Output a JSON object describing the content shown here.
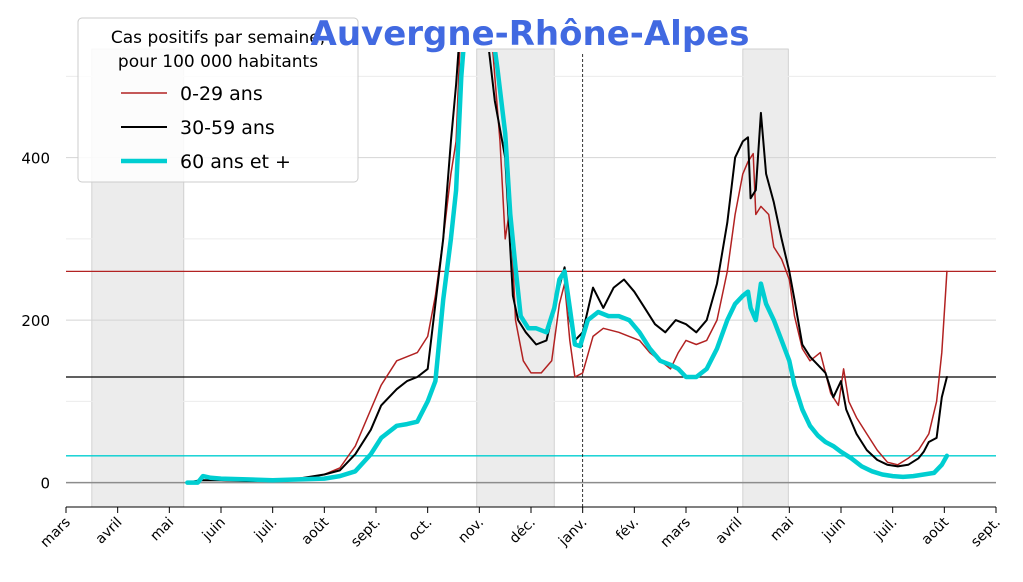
{
  "chart_data": {
    "type": "line",
    "title": "Auvergne-Rhône-Alpes",
    "title_color": "#4169e1",
    "legend": {
      "title_line1": "Cas positifs par semaine,",
      "title_line2": "pour 100 000 habitants",
      "placement": "top-left"
    },
    "xticks": [
      "mars",
      "avril",
      "mai",
      "juin",
      "juil.",
      "août",
      "sept.",
      "oct.",
      "nov.",
      "déc.",
      "janv.",
      "fév.",
      "mars",
      "avril",
      "mai",
      "juin",
      "juil.",
      "août",
      "sept."
    ],
    "xlim_months": [
      0,
      18
    ],
    "ylim": [
      -30,
      530
    ],
    "yticks": [
      0,
      200,
      400
    ],
    "minor_yticks": [
      100,
      300,
      500
    ],
    "grid": true,
    "year_boundary_month": 10,
    "shaded_periods": [
      [
        0.5,
        2.28
      ],
      [
        7.95,
        9.45
      ],
      [
        13.1,
        13.98
      ]
    ],
    "series": [
      {
        "name": "0-29 ans",
        "color": "#b22222",
        "stroke": 1.5,
        "current_level": 260,
        "points": [
          [
            2.35,
            0
          ],
          [
            2.6,
            3
          ],
          [
            3.0,
            3
          ],
          [
            3.5,
            2
          ],
          [
            4.0,
            2
          ],
          [
            4.5,
            4
          ],
          [
            5.0,
            10
          ],
          [
            5.3,
            18
          ],
          [
            5.6,
            45
          ],
          [
            5.9,
            90
          ],
          [
            6.1,
            120
          ],
          [
            6.4,
            150
          ],
          [
            6.6,
            155
          ],
          [
            6.8,
            160
          ],
          [
            7.0,
            180
          ],
          [
            7.15,
            230
          ],
          [
            7.3,
            300
          ],
          [
            7.45,
            380
          ],
          [
            7.55,
            420
          ],
          [
            7.65,
            580
          ],
          [
            8.2,
            580
          ],
          [
            8.3,
            500
          ],
          [
            8.4,
            420
          ],
          [
            8.5,
            300
          ],
          [
            8.6,
            340
          ],
          [
            8.7,
            200
          ],
          [
            8.85,
            150
          ],
          [
            9.0,
            135
          ],
          [
            9.2,
            135
          ],
          [
            9.4,
            150
          ],
          [
            9.55,
            220
          ],
          [
            9.65,
            245
          ],
          [
            9.75,
            175
          ],
          [
            9.85,
            130
          ],
          [
            10.0,
            135
          ],
          [
            10.2,
            180
          ],
          [
            10.4,
            190
          ],
          [
            10.7,
            185
          ],
          [
            10.9,
            180
          ],
          [
            11.1,
            175
          ],
          [
            11.3,
            160
          ],
          [
            11.5,
            150
          ],
          [
            11.7,
            140
          ],
          [
            11.85,
            160
          ],
          [
            12.0,
            175
          ],
          [
            12.2,
            170
          ],
          [
            12.4,
            175
          ],
          [
            12.6,
            200
          ],
          [
            12.8,
            260
          ],
          [
            12.95,
            330
          ],
          [
            13.1,
            380
          ],
          [
            13.2,
            395
          ],
          [
            13.3,
            405
          ],
          [
            13.35,
            330
          ],
          [
            13.45,
            340
          ],
          [
            13.6,
            330
          ],
          [
            13.7,
            290
          ],
          [
            13.85,
            275
          ],
          [
            14.0,
            250
          ],
          [
            14.1,
            205
          ],
          [
            14.25,
            165
          ],
          [
            14.4,
            150
          ],
          [
            14.5,
            155
          ],
          [
            14.6,
            160
          ],
          [
            14.8,
            110
          ],
          [
            14.95,
            95
          ],
          [
            15.05,
            140
          ],
          [
            15.15,
            100
          ],
          [
            15.3,
            80
          ],
          [
            15.5,
            60
          ],
          [
            15.7,
            40
          ],
          [
            15.9,
            25
          ],
          [
            16.1,
            22
          ],
          [
            16.3,
            30
          ],
          [
            16.5,
            40
          ],
          [
            16.7,
            60
          ],
          [
            16.85,
            100
          ],
          [
            16.95,
            160
          ],
          [
            17.02,
            230
          ],
          [
            17.05,
            260
          ]
        ]
      },
      {
        "name": "30-59 ans",
        "color": "#000000",
        "stroke": 2,
        "current_level": 130,
        "points": [
          [
            2.35,
            0
          ],
          [
            2.6,
            3
          ],
          [
            3.0,
            3
          ],
          [
            3.5,
            2
          ],
          [
            4.0,
            2
          ],
          [
            4.5,
            5
          ],
          [
            5.0,
            10
          ],
          [
            5.3,
            15
          ],
          [
            5.6,
            35
          ],
          [
            5.9,
            65
          ],
          [
            6.1,
            95
          ],
          [
            6.4,
            115
          ],
          [
            6.6,
            125
          ],
          [
            6.8,
            130
          ],
          [
            7.0,
            140
          ],
          [
            7.15,
            220
          ],
          [
            7.3,
            300
          ],
          [
            7.45,
            420
          ],
          [
            7.55,
            490
          ],
          [
            7.65,
            580
          ],
          [
            8.1,
            580
          ],
          [
            8.3,
            470
          ],
          [
            8.5,
            400
          ],
          [
            8.65,
            230
          ],
          [
            8.75,
            200
          ],
          [
            8.9,
            185
          ],
          [
            9.1,
            170
          ],
          [
            9.3,
            175
          ],
          [
            9.5,
            230
          ],
          [
            9.65,
            265
          ],
          [
            9.75,
            200
          ],
          [
            9.85,
            175
          ],
          [
            10.0,
            185
          ],
          [
            10.2,
            240
          ],
          [
            10.4,
            215
          ],
          [
            10.6,
            240
          ],
          [
            10.8,
            250
          ],
          [
            11.0,
            235
          ],
          [
            11.2,
            215
          ],
          [
            11.4,
            195
          ],
          [
            11.6,
            185
          ],
          [
            11.8,
            200
          ],
          [
            12.0,
            195
          ],
          [
            12.2,
            185
          ],
          [
            12.4,
            200
          ],
          [
            12.6,
            245
          ],
          [
            12.8,
            320
          ],
          [
            12.95,
            400
          ],
          [
            13.1,
            420
          ],
          [
            13.2,
            425
          ],
          [
            13.25,
            350
          ],
          [
            13.35,
            360
          ],
          [
            13.45,
            455
          ],
          [
            13.55,
            380
          ],
          [
            13.7,
            345
          ],
          [
            13.85,
            300
          ],
          [
            14.0,
            260
          ],
          [
            14.1,
            225
          ],
          [
            14.25,
            170
          ],
          [
            14.4,
            155
          ],
          [
            14.55,
            145
          ],
          [
            14.7,
            135
          ],
          [
            14.85,
            105
          ],
          [
            15.0,
            125
          ],
          [
            15.1,
            90
          ],
          [
            15.3,
            60
          ],
          [
            15.5,
            40
          ],
          [
            15.7,
            28
          ],
          [
            15.9,
            22
          ],
          [
            16.1,
            20
          ],
          [
            16.3,
            22
          ],
          [
            16.5,
            30
          ],
          [
            16.6,
            38
          ],
          [
            16.7,
            50
          ],
          [
            16.85,
            55
          ],
          [
            16.95,
            105
          ],
          [
            17.05,
            130
          ]
        ]
      },
      {
        "name": "60 ans et +",
        "color": "#00ced1",
        "stroke": 4.5,
        "current_level": 33,
        "points": [
          [
            2.35,
            0
          ],
          [
            2.55,
            0
          ],
          [
            2.65,
            8
          ],
          [
            2.8,
            6
          ],
          [
            3.0,
            5
          ],
          [
            3.5,
            4
          ],
          [
            4.0,
            3
          ],
          [
            4.5,
            4
          ],
          [
            5.0,
            5
          ],
          [
            5.3,
            8
          ],
          [
            5.6,
            14
          ],
          [
            5.9,
            35
          ],
          [
            6.1,
            55
          ],
          [
            6.4,
            70
          ],
          [
            6.6,
            72
          ],
          [
            6.8,
            75
          ],
          [
            7.0,
            100
          ],
          [
            7.15,
            125
          ],
          [
            7.3,
            225
          ],
          [
            7.45,
            300
          ],
          [
            7.55,
            360
          ],
          [
            7.65,
            500
          ],
          [
            7.75,
            580
          ],
          [
            8.2,
            580
          ],
          [
            8.35,
            510
          ],
          [
            8.5,
            430
          ],
          [
            8.6,
            330
          ],
          [
            8.7,
            265
          ],
          [
            8.8,
            205
          ],
          [
            8.95,
            190
          ],
          [
            9.1,
            190
          ],
          [
            9.3,
            185
          ],
          [
            9.45,
            215
          ],
          [
            9.55,
            250
          ],
          [
            9.65,
            260
          ],
          [
            9.75,
            215
          ],
          [
            9.85,
            170
          ],
          [
            9.95,
            168
          ],
          [
            10.1,
            200
          ],
          [
            10.3,
            210
          ],
          [
            10.5,
            205
          ],
          [
            10.7,
            205
          ],
          [
            10.9,
            200
          ],
          [
            11.1,
            185
          ],
          [
            11.3,
            165
          ],
          [
            11.5,
            150
          ],
          [
            11.7,
            145
          ],
          [
            11.85,
            140
          ],
          [
            12.0,
            130
          ],
          [
            12.2,
            130
          ],
          [
            12.4,
            140
          ],
          [
            12.6,
            165
          ],
          [
            12.8,
            200
          ],
          [
            12.95,
            220
          ],
          [
            13.1,
            230
          ],
          [
            13.2,
            235
          ],
          [
            13.25,
            215
          ],
          [
            13.35,
            200
          ],
          [
            13.45,
            245
          ],
          [
            13.55,
            220
          ],
          [
            13.7,
            200
          ],
          [
            13.85,
            175
          ],
          [
            14.0,
            150
          ],
          [
            14.1,
            120
          ],
          [
            14.25,
            90
          ],
          [
            14.4,
            70
          ],
          [
            14.55,
            58
          ],
          [
            14.7,
            50
          ],
          [
            14.85,
            45
          ],
          [
            15.0,
            38
          ],
          [
            15.2,
            30
          ],
          [
            15.4,
            20
          ],
          [
            15.6,
            14
          ],
          [
            15.8,
            10
          ],
          [
            16.0,
            8
          ],
          [
            16.2,
            7
          ],
          [
            16.4,
            8
          ],
          [
            16.6,
            10
          ],
          [
            16.8,
            12
          ],
          [
            16.95,
            22
          ],
          [
            17.05,
            33
          ]
        ]
      }
    ]
  }
}
